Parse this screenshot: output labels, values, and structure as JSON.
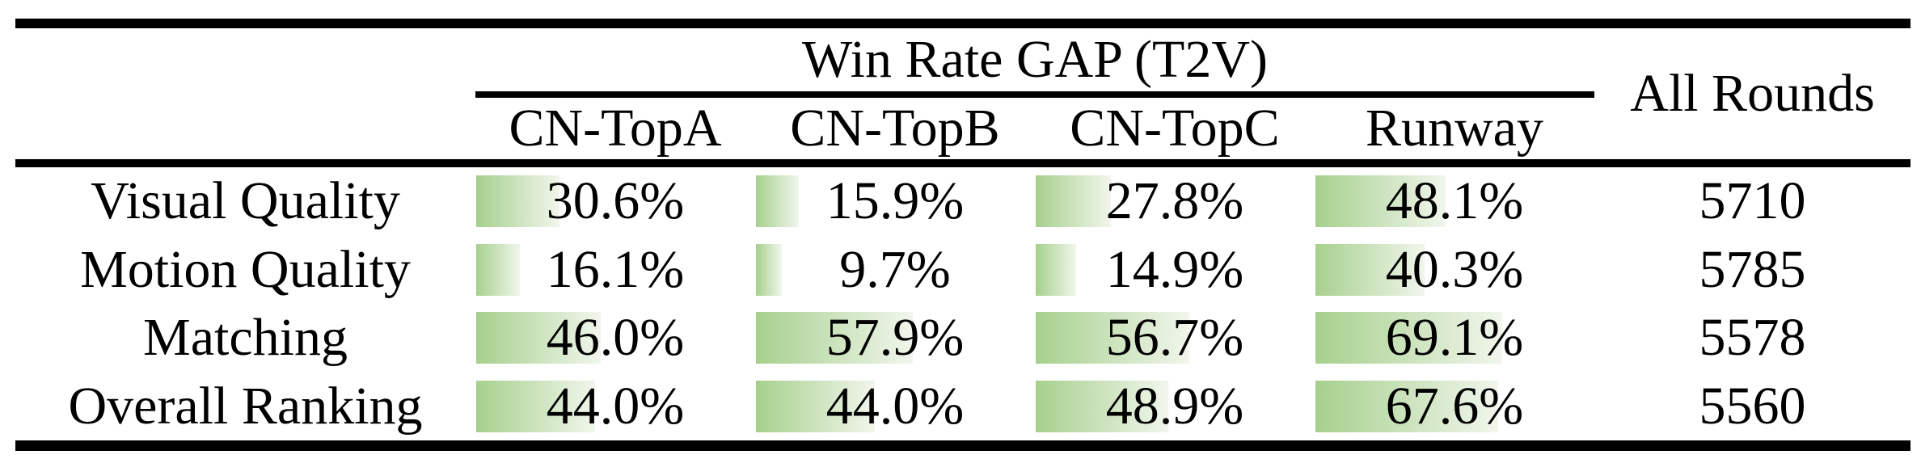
{
  "colors": {
    "rule": "#000000",
    "bar_gradient_start": "#a6d08d",
    "bar_gradient_end": "#f1f6ec"
  },
  "table": {
    "group_header": "Win Rate GAP (T2V)",
    "all_rounds_header": "All Rounds",
    "columns": [
      "CN-TopA",
      "CN-TopB",
      "CN-TopC",
      "Runway"
    ],
    "rows": [
      {
        "label": "Visual Quality",
        "cells": [
          {
            "text": "30.6%",
            "pct": 30.6
          },
          {
            "text": "15.9%",
            "pct": 15.9
          },
          {
            "text": "27.8%",
            "pct": 27.8
          },
          {
            "text": "48.1%",
            "pct": 48.1
          }
        ],
        "all_rounds": "5710"
      },
      {
        "label": "Motion Quality",
        "cells": [
          {
            "text": "16.1%",
            "pct": 16.1
          },
          {
            "text": "9.7%",
            "pct": 9.7
          },
          {
            "text": "14.9%",
            "pct": 14.9
          },
          {
            "text": "40.3%",
            "pct": 40.3
          }
        ],
        "all_rounds": "5785"
      },
      {
        "label": "Matching",
        "cells": [
          {
            "text": "46.0%",
            "pct": 46.0
          },
          {
            "text": "57.9%",
            "pct": 57.9
          },
          {
            "text": "56.7%",
            "pct": 56.7
          },
          {
            "text": "69.1%",
            "pct": 69.1
          }
        ],
        "all_rounds": "5578"
      },
      {
        "label": "Overall Ranking",
        "cells": [
          {
            "text": "44.0%",
            "pct": 44.0
          },
          {
            "text": "44.0%",
            "pct": 44.0
          },
          {
            "text": "48.9%",
            "pct": 48.9
          },
          {
            "text": "67.6%",
            "pct": 67.6
          }
        ],
        "all_rounds": "5560"
      }
    ]
  }
}
